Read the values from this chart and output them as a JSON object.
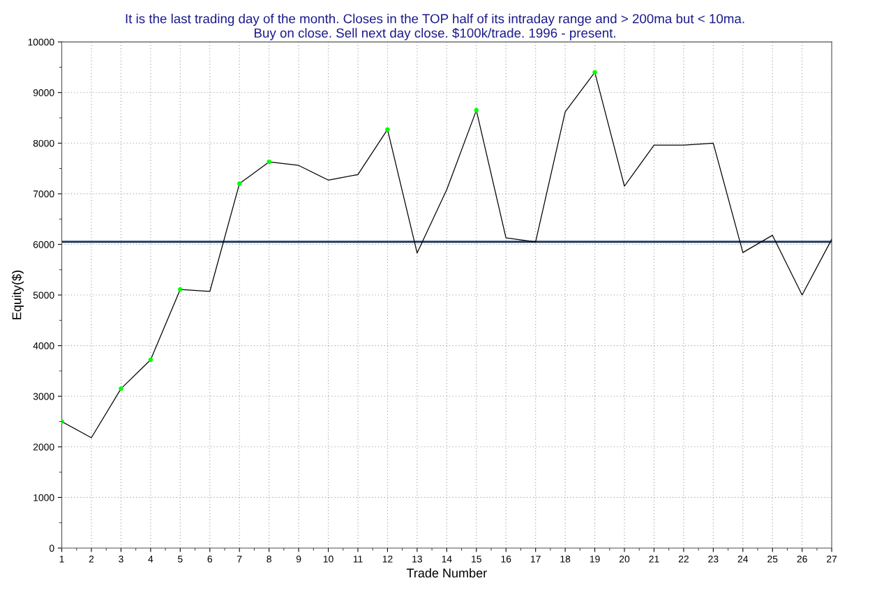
{
  "chart_data": {
    "type": "line",
    "title": "It is the last trading day of the month. Closes in the TOP half of its intraday range and > 200ma but < 10ma.\nBuy on close. Sell next day close. $100k/trade. 1996 - present.",
    "xlabel": "Trade Number",
    "ylabel": "Equity($)",
    "x": [
      1,
      2,
      3,
      4,
      5,
      6,
      7,
      8,
      9,
      10,
      11,
      12,
      13,
      14,
      15,
      16,
      17,
      18,
      19,
      20,
      21,
      22,
      23,
      24,
      25,
      26,
      27
    ],
    "series": [
      {
        "color": "#000000",
        "values": [
          2500,
          2180,
          3150,
          3720,
          5110,
          5070,
          7200,
          7630,
          7560,
          7270,
          7380,
          8270,
          5830,
          7080,
          8650,
          6130,
          6050,
          8620,
          9400,
          7150,
          7960,
          7960,
          8000,
          5840,
          6180,
          5000,
          6100
        ]
      },
      {
        "type": "scatter",
        "color": "#00ff00",
        "marker": "circle",
        "x": [
          1,
          3,
          4,
          5,
          7,
          8,
          12,
          15,
          19
        ],
        "values": [
          2500,
          3150,
          3720,
          5110,
          7200,
          7630,
          8270,
          8650,
          9400
        ]
      }
    ],
    "xlim": [
      1,
      27
    ],
    "xticks": [
      1,
      2,
      3,
      4,
      5,
      6,
      7,
      8,
      9,
      10,
      11,
      12,
      13,
      14,
      15,
      16,
      17,
      18,
      19,
      20,
      21,
      22,
      23,
      24,
      25,
      26,
      27
    ],
    "ylim": [
      0,
      10000
    ],
    "yticks": [
      0,
      1000,
      2000,
      3000,
      4000,
      5000,
      6000,
      7000,
      8000,
      9000,
      10000
    ],
    "ref_lines": [
      {
        "axis": "y",
        "value": 6050,
        "color": "#1f3a5f"
      }
    ],
    "grid": true,
    "legend": false
  }
}
